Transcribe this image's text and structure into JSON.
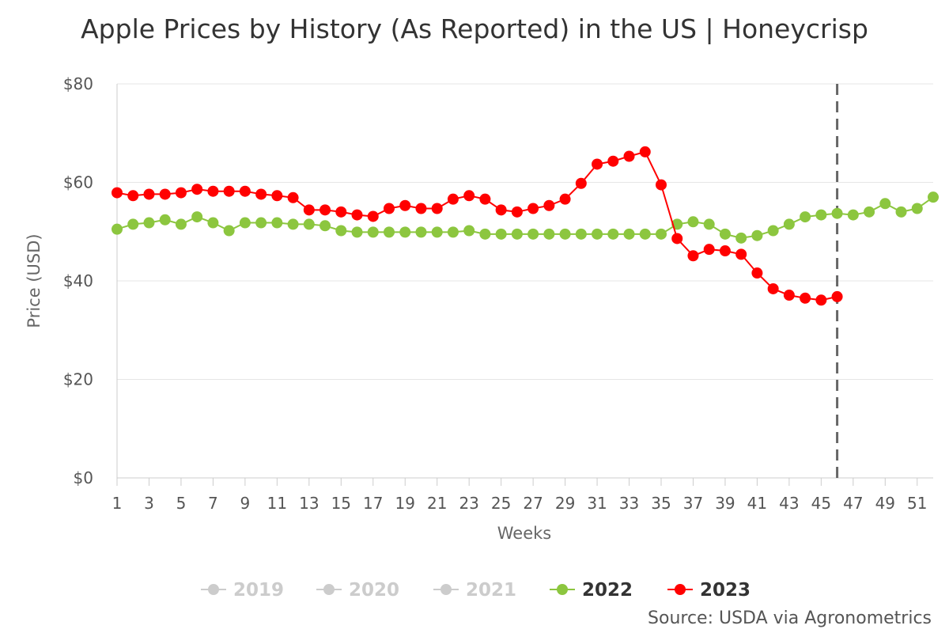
{
  "chart_data": {
    "type": "line",
    "title": "Apple Prices by History (As Reported) in the US | Honeycrisp",
    "xlabel": "Weeks",
    "ylabel": "Price (USD)",
    "xlim": [
      1,
      52
    ],
    "ylim": [
      0,
      80
    ],
    "y_ticks": [
      0,
      20,
      40,
      60,
      80
    ],
    "y_tick_labels": [
      "$0",
      "$20",
      "$40",
      "$60",
      "$80"
    ],
    "x_ticks": [
      1,
      3,
      5,
      7,
      9,
      11,
      13,
      15,
      17,
      19,
      21,
      23,
      25,
      27,
      29,
      31,
      33,
      35,
      37,
      39,
      41,
      43,
      45,
      47,
      49,
      51
    ],
    "grid": true,
    "current_week_marker": 46,
    "legend_position": "bottom",
    "series": [
      {
        "name": "2019",
        "color": "#cccccc",
        "visible": false,
        "values": []
      },
      {
        "name": "2020",
        "color": "#cccccc",
        "visible": false,
        "values": []
      },
      {
        "name": "2021",
        "color": "#cccccc",
        "visible": false,
        "values": []
      },
      {
        "name": "2022",
        "color": "#8cc63f",
        "visible": true,
        "values": [
          50.5,
          51.5,
          51.8,
          52.4,
          51.5,
          53.0,
          51.8,
          50.2,
          51.8,
          51.8,
          51.8,
          51.5,
          51.5,
          51.2,
          50.2,
          49.9,
          49.9,
          49.9,
          49.9,
          49.9,
          49.9,
          49.9,
          50.2,
          49.5,
          49.5,
          49.5,
          49.5,
          49.5,
          49.5,
          49.5,
          49.5,
          49.5,
          49.5,
          49.5,
          49.5,
          51.5,
          52.0,
          51.5,
          49.5,
          48.7,
          49.2,
          50.2,
          51.5,
          53.0,
          53.4,
          53.7,
          53.4,
          54.0,
          55.7,
          54.0,
          54.7,
          57.0
        ]
      },
      {
        "name": "2023",
        "color": "#ff0000",
        "visible": true,
        "values": [
          57.9,
          57.3,
          57.6,
          57.6,
          57.9,
          58.6,
          58.2,
          58.2,
          58.2,
          57.6,
          57.3,
          56.9,
          54.4,
          54.4,
          54.0,
          53.4,
          53.1,
          54.7,
          55.3,
          54.7,
          54.7,
          56.6,
          57.3,
          56.6,
          54.4,
          54.0,
          54.7,
          55.3,
          56.6,
          59.8,
          63.7,
          64.3,
          65.3,
          66.2,
          59.5,
          48.6,
          45.1,
          46.4,
          46.1,
          45.4,
          41.6,
          38.4,
          37.1,
          36.5,
          36.1,
          36.8
        ]
      }
    ]
  },
  "source": "Source: USDA via Agronometrics"
}
